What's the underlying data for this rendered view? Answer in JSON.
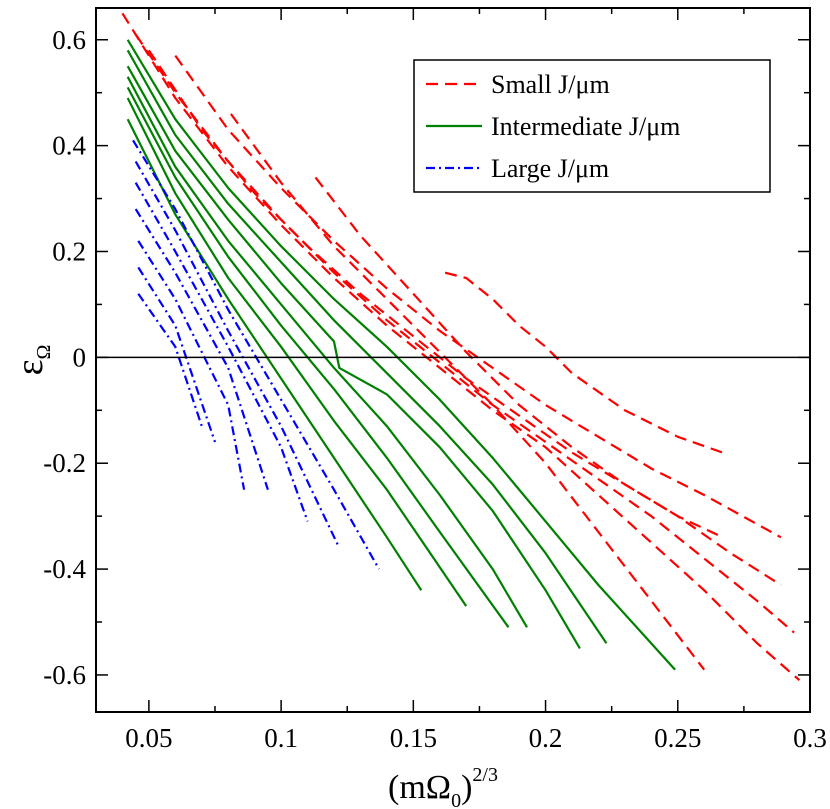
{
  "chart_data": {
    "type": "line",
    "title": "",
    "xlabel": {
      "base": "(mΩ",
      "sub": "0",
      "close": ")",
      "sup": "2/3"
    },
    "ylabel": {
      "base": "ε",
      "sub": "Ω"
    },
    "xlim": [
      0.03,
      0.3
    ],
    "ylim": [
      -0.67,
      0.66
    ],
    "x_ticks": [
      0.05,
      0.1,
      0.15,
      0.2,
      0.25,
      0.3
    ],
    "x_tick_labels": [
      "0.05",
      "0.1",
      "0.15",
      "0.2",
      "0.25",
      "0.3"
    ],
    "y_ticks": [
      -0.6,
      -0.4,
      -0.2,
      0,
      0.2,
      0.4,
      0.6
    ],
    "y_tick_labels": [
      "-0.6",
      "-0.4",
      "-0.2",
      "0",
      "0.2",
      "0.4",
      "0.6"
    ],
    "reference_line_y": 0,
    "legend": {
      "position": "top-right",
      "entries": [
        {
          "label": "Small J/μm",
          "group": "small"
        },
        {
          "label": "Intermediate J/μm",
          "group": "intermediate"
        },
        {
          "label": "Large J/μm",
          "group": "large"
        }
      ]
    },
    "groups": {
      "small": {
        "color": "#ff0000",
        "dash": "12,7"
      },
      "intermediate": {
        "color": "#008000",
        "dash": ""
      },
      "large": {
        "color": "#0000ff",
        "dash": "9,4,2,4"
      }
    },
    "series": [
      {
        "name": "small-1",
        "group": "small",
        "x": [
          0.04,
          0.06,
          0.08,
          0.1,
          0.12,
          0.14,
          0.16,
          0.18,
          0.2,
          0.22,
          0.24,
          0.26,
          0.28,
          0.296
        ],
        "y": [
          0.65,
          0.49,
          0.36,
          0.25,
          0.15,
          0.06,
          -0.02,
          -0.1,
          -0.17,
          -0.26,
          -0.35,
          -0.44,
          -0.54,
          -0.61
        ]
      },
      {
        "name": "small-2",
        "group": "small",
        "x": [
          0.045,
          0.06,
          0.08,
          0.1,
          0.12,
          0.14,
          0.16,
          0.18,
          0.2,
          0.22,
          0.24,
          0.26,
          0.28,
          0.294
        ],
        "y": [
          0.61,
          0.5,
          0.37,
          0.26,
          0.16,
          0.07,
          -0.01,
          -0.09,
          -0.16,
          -0.23,
          -0.3,
          -0.38,
          -0.46,
          -0.52
        ]
      },
      {
        "name": "small-3",
        "group": "small",
        "x": [
          0.05,
          0.07,
          0.09,
          0.11,
          0.13,
          0.15,
          0.17,
          0.19,
          0.21,
          0.23,
          0.25,
          0.27,
          0.289
        ],
        "y": [
          0.58,
          0.43,
          0.31,
          0.21,
          0.12,
          0.04,
          -0.04,
          -0.11,
          -0.18,
          -0.24,
          -0.3,
          -0.37,
          -0.43
        ]
      },
      {
        "name": "small-4",
        "group": "small",
        "x": [
          0.06,
          0.08,
          0.1,
          0.12,
          0.14,
          0.16,
          0.18,
          0.2,
          0.22,
          0.24,
          0.26,
          0.289
        ],
        "y": [
          0.57,
          0.43,
          0.32,
          0.22,
          0.13,
          0.05,
          -0.02,
          -0.09,
          -0.15,
          -0.21,
          -0.26,
          -0.34
        ]
      },
      {
        "name": "small-5",
        "group": "small",
        "x": [
          0.081,
          0.1,
          0.12,
          0.14,
          0.16,
          0.18,
          0.2,
          0.22,
          0.24,
          0.26
        ],
        "y": [
          0.46,
          0.33,
          0.21,
          0.11,
          0.01,
          -0.09,
          -0.2,
          -0.33,
          -0.46,
          -0.59
        ]
      },
      {
        "name": "small-6",
        "group": "small",
        "x": [
          0.113,
          0.13,
          0.15,
          0.17,
          0.19,
          0.21,
          0.23,
          0.25,
          0.267
        ],
        "y": [
          0.34,
          0.23,
          0.12,
          0.01,
          -0.09,
          -0.17,
          -0.24,
          -0.3,
          -0.34
        ]
      },
      {
        "name": "small-7",
        "group": "small",
        "x": [
          0.162,
          0.17,
          0.18,
          0.19,
          0.2,
          0.21,
          0.23,
          0.25,
          0.267
        ],
        "y": [
          0.16,
          0.15,
          0.11,
          0.06,
          0.02,
          -0.03,
          -0.1,
          -0.15,
          -0.18
        ]
      },
      {
        "name": "intermediate-1",
        "group": "intermediate",
        "x": [
          0.042,
          0.06,
          0.08,
          0.1,
          0.12,
          0.14,
          0.16,
          0.18,
          0.2,
          0.22,
          0.249
        ],
        "y": [
          0.6,
          0.45,
          0.32,
          0.21,
          0.11,
          0.02,
          -0.08,
          -0.19,
          -0.31,
          -0.43,
          -0.59
        ]
      },
      {
        "name": "intermediate-2",
        "group": "intermediate",
        "x": [
          0.042,
          0.06,
          0.08,
          0.1,
          0.12,
          0.14,
          0.16,
          0.18,
          0.2,
          0.223
        ],
        "y": [
          0.58,
          0.42,
          0.29,
          0.18,
          0.07,
          -0.03,
          -0.13,
          -0.24,
          -0.37,
          -0.54
        ]
      },
      {
        "name": "intermediate-3",
        "group": "intermediate",
        "x": [
          0.042,
          0.06,
          0.08,
          0.1,
          0.12,
          0.122,
          0.14,
          0.16,
          0.18,
          0.2,
          0.213
        ],
        "y": [
          0.55,
          0.39,
          0.26,
          0.14,
          0.03,
          -0.02,
          -0.07,
          -0.17,
          -0.29,
          -0.44,
          -0.55
        ]
      },
      {
        "name": "intermediate-4",
        "group": "intermediate",
        "x": [
          0.042,
          0.06,
          0.08,
          0.1,
          0.12,
          0.14,
          0.16,
          0.18,
          0.193
        ],
        "y": [
          0.53,
          0.36,
          0.22,
          0.1,
          -0.02,
          -0.13,
          -0.26,
          -0.4,
          -0.51
        ]
      },
      {
        "name": "intermediate-5",
        "group": "intermediate",
        "x": [
          0.042,
          0.06,
          0.08,
          0.1,
          0.12,
          0.14,
          0.16,
          0.186
        ],
        "y": [
          0.51,
          0.34,
          0.19,
          0.06,
          -0.06,
          -0.19,
          -0.33,
          -0.51
        ]
      },
      {
        "name": "intermediate-6",
        "group": "intermediate",
        "x": [
          0.042,
          0.06,
          0.08,
          0.1,
          0.12,
          0.14,
          0.155,
          0.17
        ],
        "y": [
          0.49,
          0.31,
          0.15,
          0.02,
          -0.12,
          -0.25,
          -0.36,
          -0.47
        ]
      },
      {
        "name": "intermediate-7",
        "group": "intermediate",
        "x": [
          0.042,
          0.06,
          0.08,
          0.1,
          0.12,
          0.14,
          0.153
        ],
        "y": [
          0.45,
          0.27,
          0.11,
          -0.04,
          -0.19,
          -0.34,
          -0.44
        ]
      },
      {
        "name": "large-1",
        "group": "large",
        "x": [
          0.044,
          0.06,
          0.08,
          0.1,
          0.12,
          0.137
        ],
        "y": [
          0.41,
          0.28,
          0.09,
          -0.08,
          -0.25,
          -0.4
        ]
      },
      {
        "name": "large-2",
        "group": "large",
        "x": [
          0.045,
          0.06,
          0.08,
          0.1,
          0.122
        ],
        "y": [
          0.37,
          0.24,
          0.05,
          -0.13,
          -0.36
        ]
      },
      {
        "name": "large-3",
        "group": "large",
        "x": [
          0.045,
          0.06,
          0.08,
          0.1,
          0.11
        ],
        "y": [
          0.33,
          0.2,
          0.02,
          -0.17,
          -0.31
        ]
      },
      {
        "name": "large-4",
        "group": "large",
        "x": [
          0.045,
          0.06,
          0.08,
          0.095
        ],
        "y": [
          0.28,
          0.16,
          -0.02,
          -0.25
        ]
      },
      {
        "name": "large-5",
        "group": "large",
        "x": [
          0.046,
          0.06,
          0.08,
          0.086
        ],
        "y": [
          0.22,
          0.11,
          -0.09,
          -0.25
        ]
      },
      {
        "name": "large-6",
        "group": "large",
        "x": [
          0.046,
          0.06,
          0.075
        ],
        "y": [
          0.17,
          0.06,
          -0.16
        ]
      },
      {
        "name": "large-7",
        "group": "large",
        "x": [
          0.046,
          0.06,
          0.07
        ],
        "y": [
          0.12,
          0.02,
          -0.13
        ]
      }
    ]
  }
}
